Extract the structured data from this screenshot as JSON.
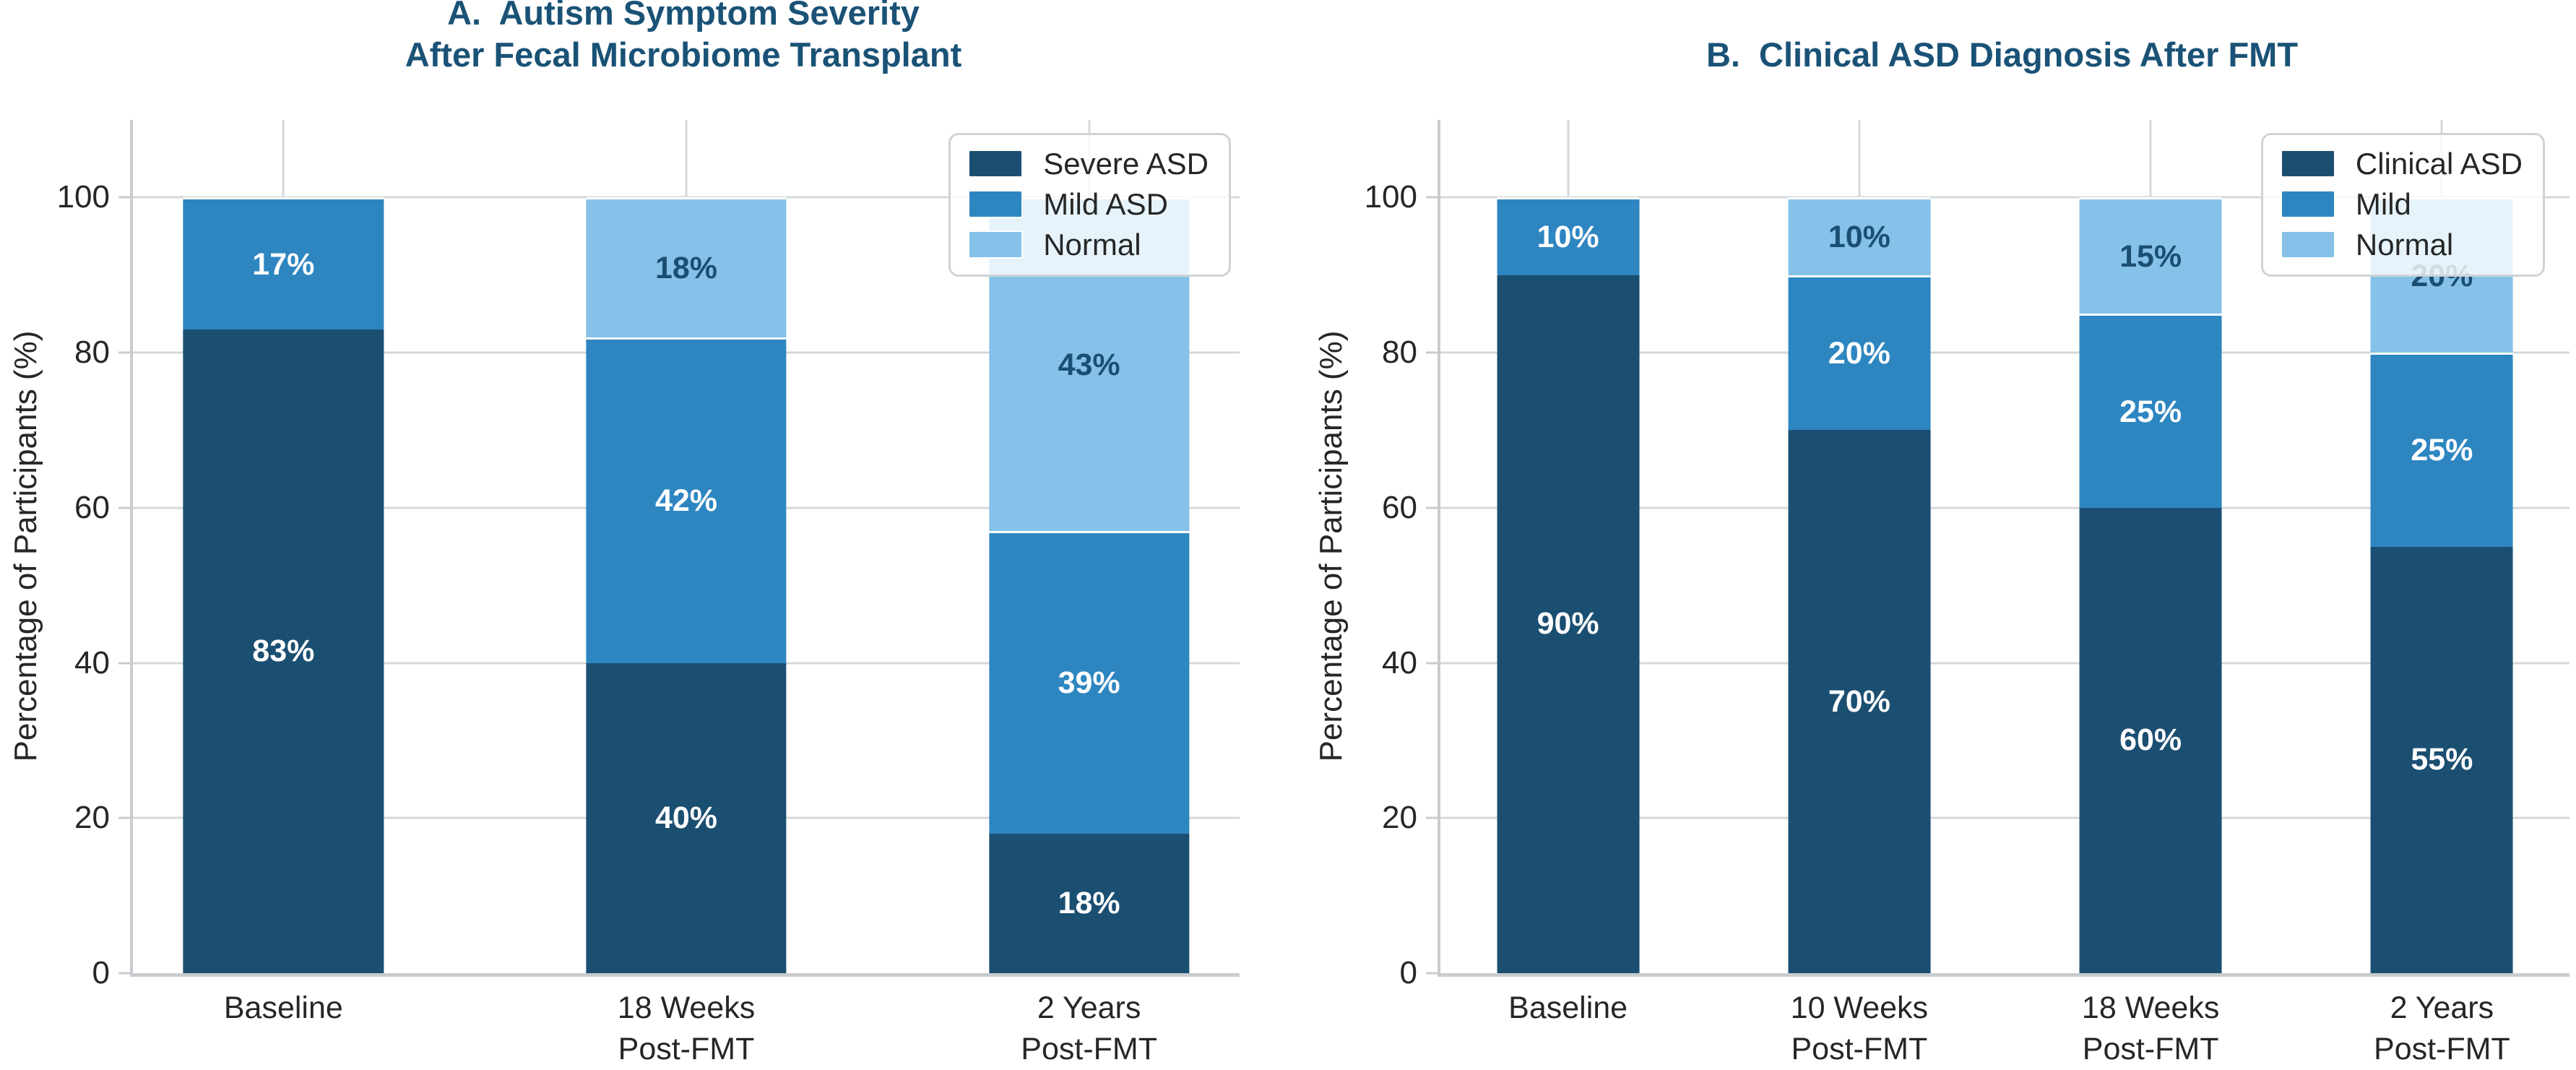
{
  "figure": {
    "background": "#ffffff",
    "text_color": "#262626",
    "title_color": "#1a5276",
    "grid_color": "#d5d8da",
    "spine_color": "#c9cccf",
    "dark_label_color": "#1b4f72",
    "light_label_text": "labels on light segments are dark navy, labels on dark/mid segments are white"
  },
  "chart_data": [
    {
      "type": "bar",
      "stacked": true,
      "panel": "A",
      "title": "A.  Autism Symptom Severity\nAfter Fecal Microbiome Transplant",
      "ylabel": "Percentage of Participants (%)",
      "categories": [
        "Baseline",
        "18 Weeks\nPost-FMT",
        "2 Years\nPost-FMT"
      ],
      "series": [
        {
          "name": "Severe ASD",
          "color": "#1b4f72",
          "values": [
            83,
            40,
            18
          ]
        },
        {
          "name": "Mild ASD",
          "color": "#2e86c1",
          "values": [
            17,
            42,
            39
          ]
        },
        {
          "name": "Normal",
          "color": "#85c1e9",
          "values": [
            0,
            18,
            43
          ]
        }
      ],
      "yticks": [
        0,
        20,
        40,
        60,
        80,
        100
      ],
      "ylim": [
        0,
        110
      ],
      "grid": true,
      "legend_position": "upper right",
      "value_label_format": "{value}%"
    },
    {
      "type": "bar",
      "stacked": true,
      "panel": "B",
      "title": "B.  Clinical ASD Diagnosis After FMT",
      "ylabel": "Percentage of Participants (%)",
      "categories": [
        "Baseline",
        "10 Weeks\nPost-FMT",
        "18 Weeks\nPost-FMT",
        "2 Years\nPost-FMT"
      ],
      "series": [
        {
          "name": "Clinical ASD",
          "color": "#1b4f72",
          "values": [
            90,
            70,
            60,
            55
          ]
        },
        {
          "name": "Mild",
          "color": "#2e86c1",
          "values": [
            10,
            20,
            25,
            25
          ]
        },
        {
          "name": "Normal",
          "color": "#85c1e9",
          "values": [
            0,
            10,
            15,
            20
          ]
        }
      ],
      "yticks": [
        0,
        20,
        40,
        60,
        80,
        100
      ],
      "ylim": [
        0,
        110
      ],
      "grid": true,
      "legend_position": "upper right",
      "value_label_format": "{value}%"
    }
  ]
}
